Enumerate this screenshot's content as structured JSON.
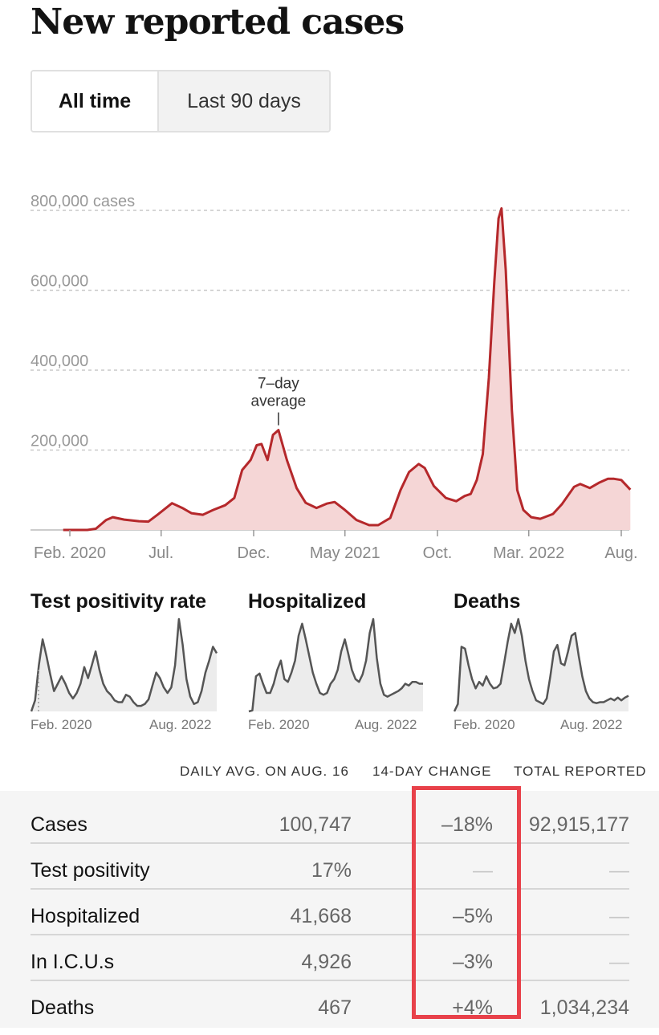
{
  "title": "New reported cases",
  "toggle": {
    "active": "All time",
    "inactive": "Last 90 days"
  },
  "colors": {
    "line": "#b5282b",
    "fill": "#f5d6d6",
    "grid": "#c9c9c9",
    "small_line": "#555555",
    "small_fill": "#ececec",
    "highlight": "#e8414a"
  },
  "chart_data": [
    {
      "type": "area",
      "title": "New reported cases",
      "y_axis_labels": [
        "800,000 cases",
        "600,000",
        "400,000",
        "200,000"
      ],
      "y_ticks": [
        800000,
        600000,
        400000,
        200000
      ],
      "ylim": [
        0,
        800000
      ],
      "x_axis_labels": [
        "Feb. 2020",
        "Jul.",
        "Dec.",
        "May 2021",
        "Oct.",
        "Mar. 2022",
        "Aug."
      ],
      "x_ticks": [
        "2020-02-01",
        "2020-07-01",
        "2020-12-01",
        "2021-05-01",
        "2021-10-01",
        "2022-03-01",
        "2022-08-01"
      ],
      "annotation": {
        "text_lines": [
          "7–day",
          "average"
        ],
        "date": "2021-01-11"
      },
      "series": [
        {
          "x": [
            "2020-01-21",
            "2020-03-01",
            "2020-03-15",
            "2020-04-01",
            "2020-04-12",
            "2020-05-01",
            "2020-05-25",
            "2020-06-10",
            "2020-06-25",
            "2020-07-19",
            "2020-08-05",
            "2020-08-20",
            "2020-09-08",
            "2020-09-25",
            "2020-10-15",
            "2020-10-30",
            "2020-11-12",
            "2020-11-26",
            "2020-12-06",
            "2020-12-14",
            "2020-12-24",
            "2021-01-02",
            "2021-01-11",
            "2021-01-25",
            "2021-02-10",
            "2021-02-25",
            "2021-03-15",
            "2021-04-01",
            "2021-04-14",
            "2021-05-01",
            "2021-05-20",
            "2021-06-10",
            "2021-06-25",
            "2021-07-15",
            "2021-08-01",
            "2021-08-15",
            "2021-08-31",
            "2021-09-10",
            "2021-09-25",
            "2021-10-15",
            "2021-11-01",
            "2021-11-15",
            "2021-11-25",
            "2021-12-05",
            "2021-12-15",
            "2021-12-25",
            "2022-01-03",
            "2022-01-10",
            "2022-01-15",
            "2022-01-22",
            "2022-02-01",
            "2022-02-10",
            "2022-02-20",
            "2022-03-05",
            "2022-03-20",
            "2022-04-10",
            "2022-04-25",
            "2022-05-15",
            "2022-05-25",
            "2022-06-10",
            "2022-06-25",
            "2022-07-10",
            "2022-07-20",
            "2022-08-01",
            "2022-08-16"
          ],
          "y": [
            0,
            0,
            3000,
            25000,
            32000,
            26000,
            22000,
            21000,
            38000,
            67000,
            55000,
            42000,
            38000,
            50000,
            62000,
            80000,
            150000,
            175000,
            212000,
            215000,
            175000,
            238000,
            250000,
            175000,
            105000,
            68000,
            55000,
            66000,
            70000,
            50000,
            25000,
            12000,
            12000,
            30000,
            100000,
            145000,
            165000,
            155000,
            110000,
            80000,
            72000,
            85000,
            90000,
            125000,
            190000,
            380000,
            620000,
            780000,
            805000,
            650000,
            300000,
            100000,
            50000,
            32000,
            28000,
            40000,
            65000,
            108000,
            115000,
            105000,
            118000,
            128000,
            128000,
            125000,
            101000
          ]
        }
      ]
    },
    {
      "type": "area",
      "title": "Test positivity rate",
      "x_axis_labels": [
        "Feb. 2020",
        "Aug. 2022"
      ],
      "series": [
        {
          "values": [
            0,
            0.12,
            0.5,
            0.78,
            0.6,
            0.4,
            0.22,
            0.3,
            0.38,
            0.3,
            0.2,
            0.14,
            0.2,
            0.3,
            0.48,
            0.36,
            0.5,
            0.65,
            0.45,
            0.3,
            0.22,
            0.18,
            0.12,
            0.1,
            0.1,
            0.18,
            0.16,
            0.1,
            0.06,
            0.06,
            0.08,
            0.13,
            0.28,
            0.42,
            0.36,
            0.26,
            0.2,
            0.26,
            0.5,
            1.0,
            0.72,
            0.35,
            0.16,
            0.08,
            0.1,
            0.22,
            0.42,
            0.55,
            0.7,
            0.63
          ]
        }
      ]
    },
    {
      "type": "area",
      "title": "Hospitalized",
      "x_axis_labels": [
        "Feb. 2020",
        "Aug. 2022"
      ],
      "series": [
        {
          "values": [
            0,
            0.01,
            0.38,
            0.41,
            0.3,
            0.2,
            0.2,
            0.3,
            0.45,
            0.55,
            0.35,
            0.32,
            0.42,
            0.55,
            0.82,
            0.95,
            0.78,
            0.6,
            0.42,
            0.3,
            0.2,
            0.18,
            0.2,
            0.3,
            0.35,
            0.45,
            0.65,
            0.78,
            0.62,
            0.45,
            0.35,
            0.32,
            0.4,
            0.55,
            0.85,
            1.0,
            0.58,
            0.3,
            0.18,
            0.16,
            0.18,
            0.2,
            0.22,
            0.25,
            0.3,
            0.28,
            0.32,
            0.32,
            0.3,
            0.3
          ]
        }
      ]
    },
    {
      "type": "area",
      "title": "Deaths",
      "x_axis_labels": [
        "Feb. 2020",
        "Aug. 2022"
      ],
      "series": [
        {
          "values": [
            0,
            0.08,
            0.7,
            0.68,
            0.5,
            0.35,
            0.25,
            0.32,
            0.28,
            0.38,
            0.3,
            0.25,
            0.26,
            0.3,
            0.52,
            0.75,
            0.95,
            0.85,
            1.0,
            0.82,
            0.55,
            0.35,
            0.22,
            0.12,
            0.1,
            0.08,
            0.14,
            0.38,
            0.65,
            0.72,
            0.52,
            0.5,
            0.65,
            0.82,
            0.85,
            0.6,
            0.38,
            0.22,
            0.14,
            0.1,
            0.09,
            0.1,
            0.1,
            0.12,
            0.14,
            0.12,
            0.15,
            0.12,
            0.15,
            0.17
          ]
        }
      ]
    }
  ],
  "table": {
    "headers": {
      "avg": "DAILY AVG. ON AUG. 16",
      "change": "14-DAY CHANGE",
      "total": "TOTAL REPORTED"
    },
    "rows": [
      {
        "label": "Cases",
        "avg": "100,747",
        "change": "–18%",
        "total": "92,915,177"
      },
      {
        "label": "Test positivity",
        "avg": "17%",
        "change": "—",
        "total": "—"
      },
      {
        "label": "Hospitalized",
        "avg": "41,668",
        "change": "–5%",
        "total": "—"
      },
      {
        "label": "In I.C.U.s",
        "avg": "4,926",
        "change": "–3%",
        "total": "—"
      },
      {
        "label": "Deaths",
        "avg": "467",
        "change": "+4%",
        "total": "1,034,234"
      }
    ]
  }
}
